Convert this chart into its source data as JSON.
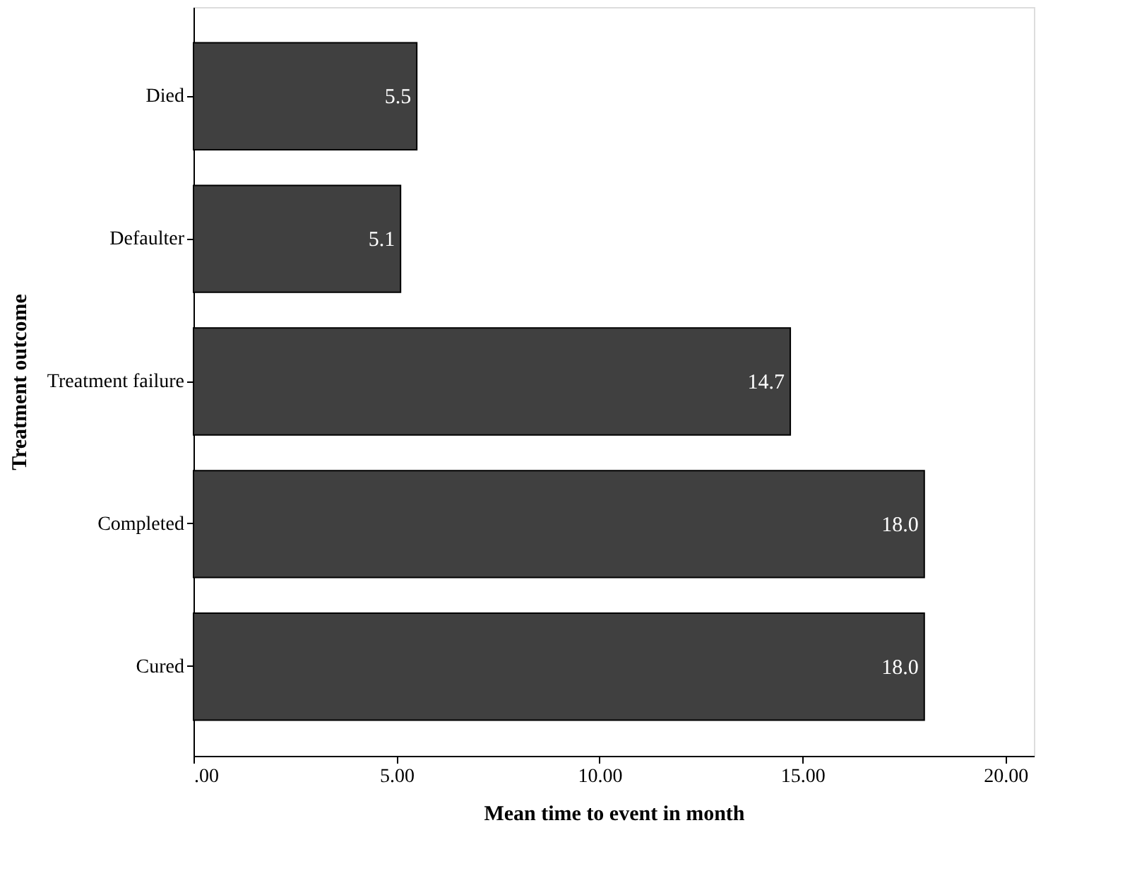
{
  "chart_data": {
    "type": "bar",
    "orientation": "horizontal",
    "xlabel": "Mean time to event in month",
    "ylabel": "Treatment outcome",
    "categories": [
      "Died",
      "Defaulter",
      "Treatment failure",
      "Completed",
      "Cured"
    ],
    "values": [
      5.5,
      5.1,
      14.7,
      18.0,
      18.0
    ],
    "value_labels": [
      "5.5",
      "5.1",
      "14.7",
      "18.0",
      "18.0"
    ],
    "color": "#404040",
    "xlim": [
      0,
      20.7
    ],
    "xticks": [
      {
        "value": 0,
        "label": ".00"
      },
      {
        "value": 5,
        "label": "5.00"
      },
      {
        "value": 10,
        "label": "10.00"
      },
      {
        "value": 15,
        "label": "15.00"
      },
      {
        "value": 20,
        "label": "20.00"
      }
    ],
    "grid": false
  }
}
